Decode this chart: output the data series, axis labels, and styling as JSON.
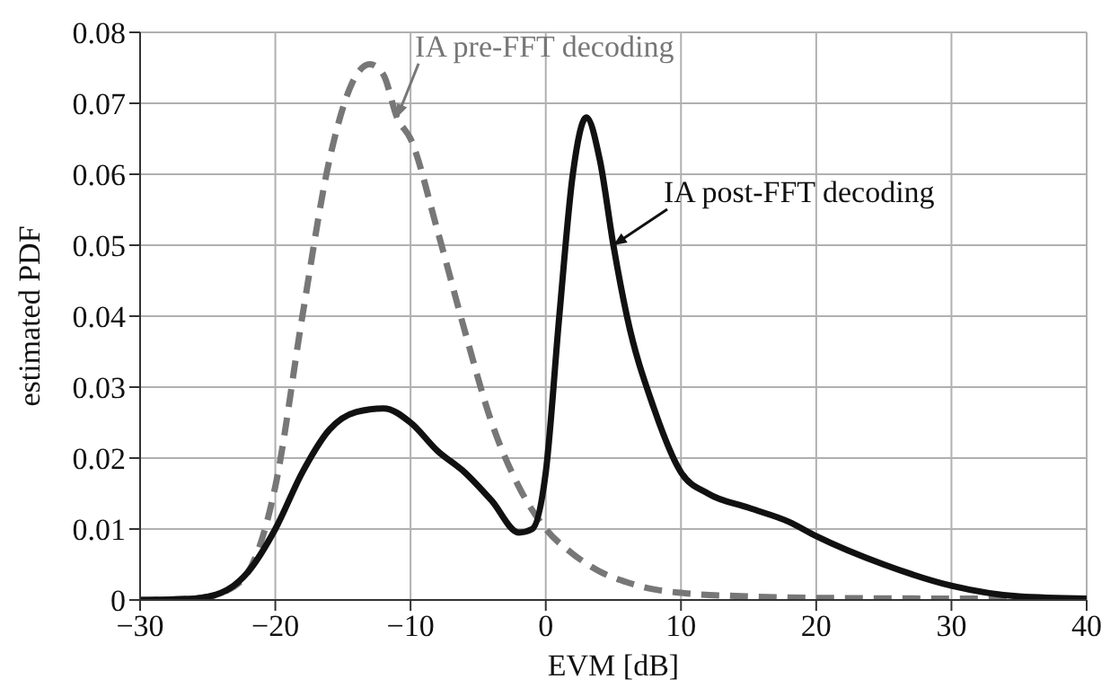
{
  "chart_data": {
    "type": "line",
    "xlabel": "EVM [dB]",
    "ylabel": "estimated PDF",
    "xlim": [
      -30,
      40
    ],
    "xticks": [
      -30,
      -20,
      -10,
      0,
      10,
      20,
      30,
      40
    ],
    "ylim": [
      0,
      0.08
    ],
    "yticks": [
      0,
      0.01,
      0.02,
      0.03,
      0.04,
      0.05,
      0.06,
      0.07,
      0.08
    ],
    "grid": true,
    "legend": false,
    "marker": "none",
    "series": [
      {
        "color": "#777777",
        "line_style": "dashed",
        "x": [
          -30,
          -26,
          -24,
          -22,
          -20,
          -18,
          -16,
          -14,
          -13,
          -12,
          -11,
          -10,
          -8,
          -6,
          -4,
          -2,
          0,
          2,
          4,
          6,
          8,
          10,
          15,
          20,
          30,
          40
        ],
        "values": [
          0,
          0.0002,
          0.001,
          0.004,
          0.016,
          0.04,
          0.062,
          0.074,
          0.0755,
          0.074,
          0.068,
          0.065,
          0.052,
          0.038,
          0.025,
          0.016,
          0.01,
          0.0065,
          0.004,
          0.0025,
          0.0015,
          0.001,
          0.0005,
          0.0003,
          0.0002,
          0.0002
        ]
      },
      {
        "color": "#111111",
        "line_style": "solid",
        "x": [
          -30,
          -26,
          -24,
          -22,
          -20,
          -18,
          -16,
          -14,
          -12,
          -10,
          -8,
          -6,
          -4,
          -2,
          -1,
          0,
          1,
          2,
          3,
          4,
          5,
          6,
          8,
          10,
          12,
          15,
          18,
          20,
          25,
          30,
          35,
          40
        ],
        "values": [
          0,
          0.0002,
          0.001,
          0.004,
          0.01,
          0.018,
          0.024,
          0.0265,
          0.027,
          0.025,
          0.021,
          0.018,
          0.014,
          0.0095,
          0.01,
          0.018,
          0.04,
          0.06,
          0.068,
          0.062,
          0.05,
          0.04,
          0.027,
          0.018,
          0.015,
          0.013,
          0.011,
          0.009,
          0.005,
          0.002,
          0.0005,
          0.0002
        ]
      }
    ],
    "annotations": [
      {
        "text": "IA pre-FFT decoding",
        "x": -11,
        "y": 0.068
      },
      {
        "text": "IA post-FFT decoding",
        "x": 5,
        "y": 0.05
      }
    ]
  }
}
